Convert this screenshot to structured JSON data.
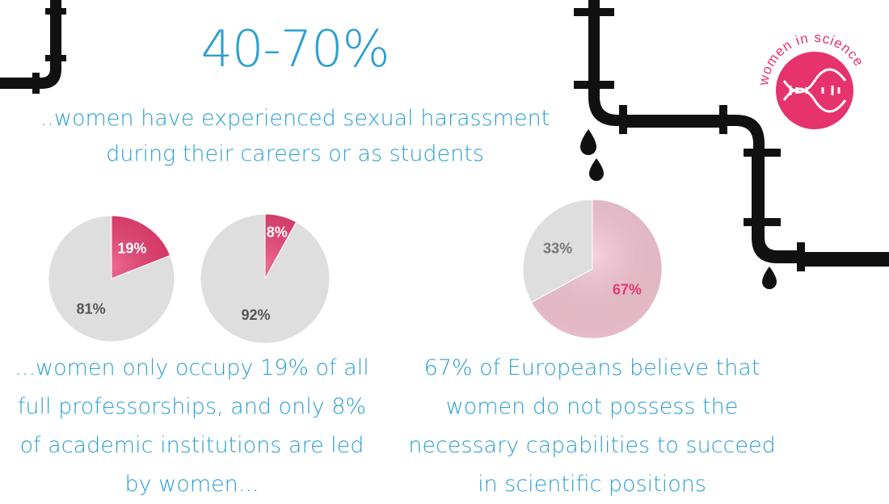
{
  "headline": "40-70%",
  "subline": "..women have experienced sexual harassment during their careers or as students",
  "caption_left": "...women only occupy 19% of all full professorships, and only 8% of academic institutions are led by women...",
  "caption_right": "67% of Europeans believe that women do not possess the necessary capabilities to succeed in scientific positions",
  "logo": {
    "text": "women in science",
    "color": "#e6336e",
    "icon": "dna-icon"
  },
  "colors": {
    "text_blue": "#2c9fd2",
    "pink": "#e8396e",
    "light_pink": "#f5c6d5",
    "grey": "#dedede",
    "pipe": "#111111"
  },
  "chart_data": [
    {
      "type": "pie",
      "slices": [
        {
          "label": "19%",
          "value": 19,
          "color": "#e8396e",
          "label_color": "#ffffff"
        },
        {
          "label": "81%",
          "value": 81,
          "color": "#dedede",
          "label_color": "#555555"
        }
      ]
    },
    {
      "type": "pie",
      "slices": [
        {
          "label": "8%",
          "value": 8,
          "color": "#e8396e",
          "label_color": "#ffffff"
        },
        {
          "label": "92%",
          "value": 92,
          "color": "#dedede",
          "label_color": "#555555"
        }
      ]
    },
    {
      "type": "pie",
      "slices": [
        {
          "label": "67%",
          "value": 67,
          "color": "#f5c6d5",
          "label_color": "#e8396e"
        },
        {
          "label": "33%",
          "value": 33,
          "color": "#dedede",
          "label_color": "#777777"
        }
      ]
    }
  ]
}
